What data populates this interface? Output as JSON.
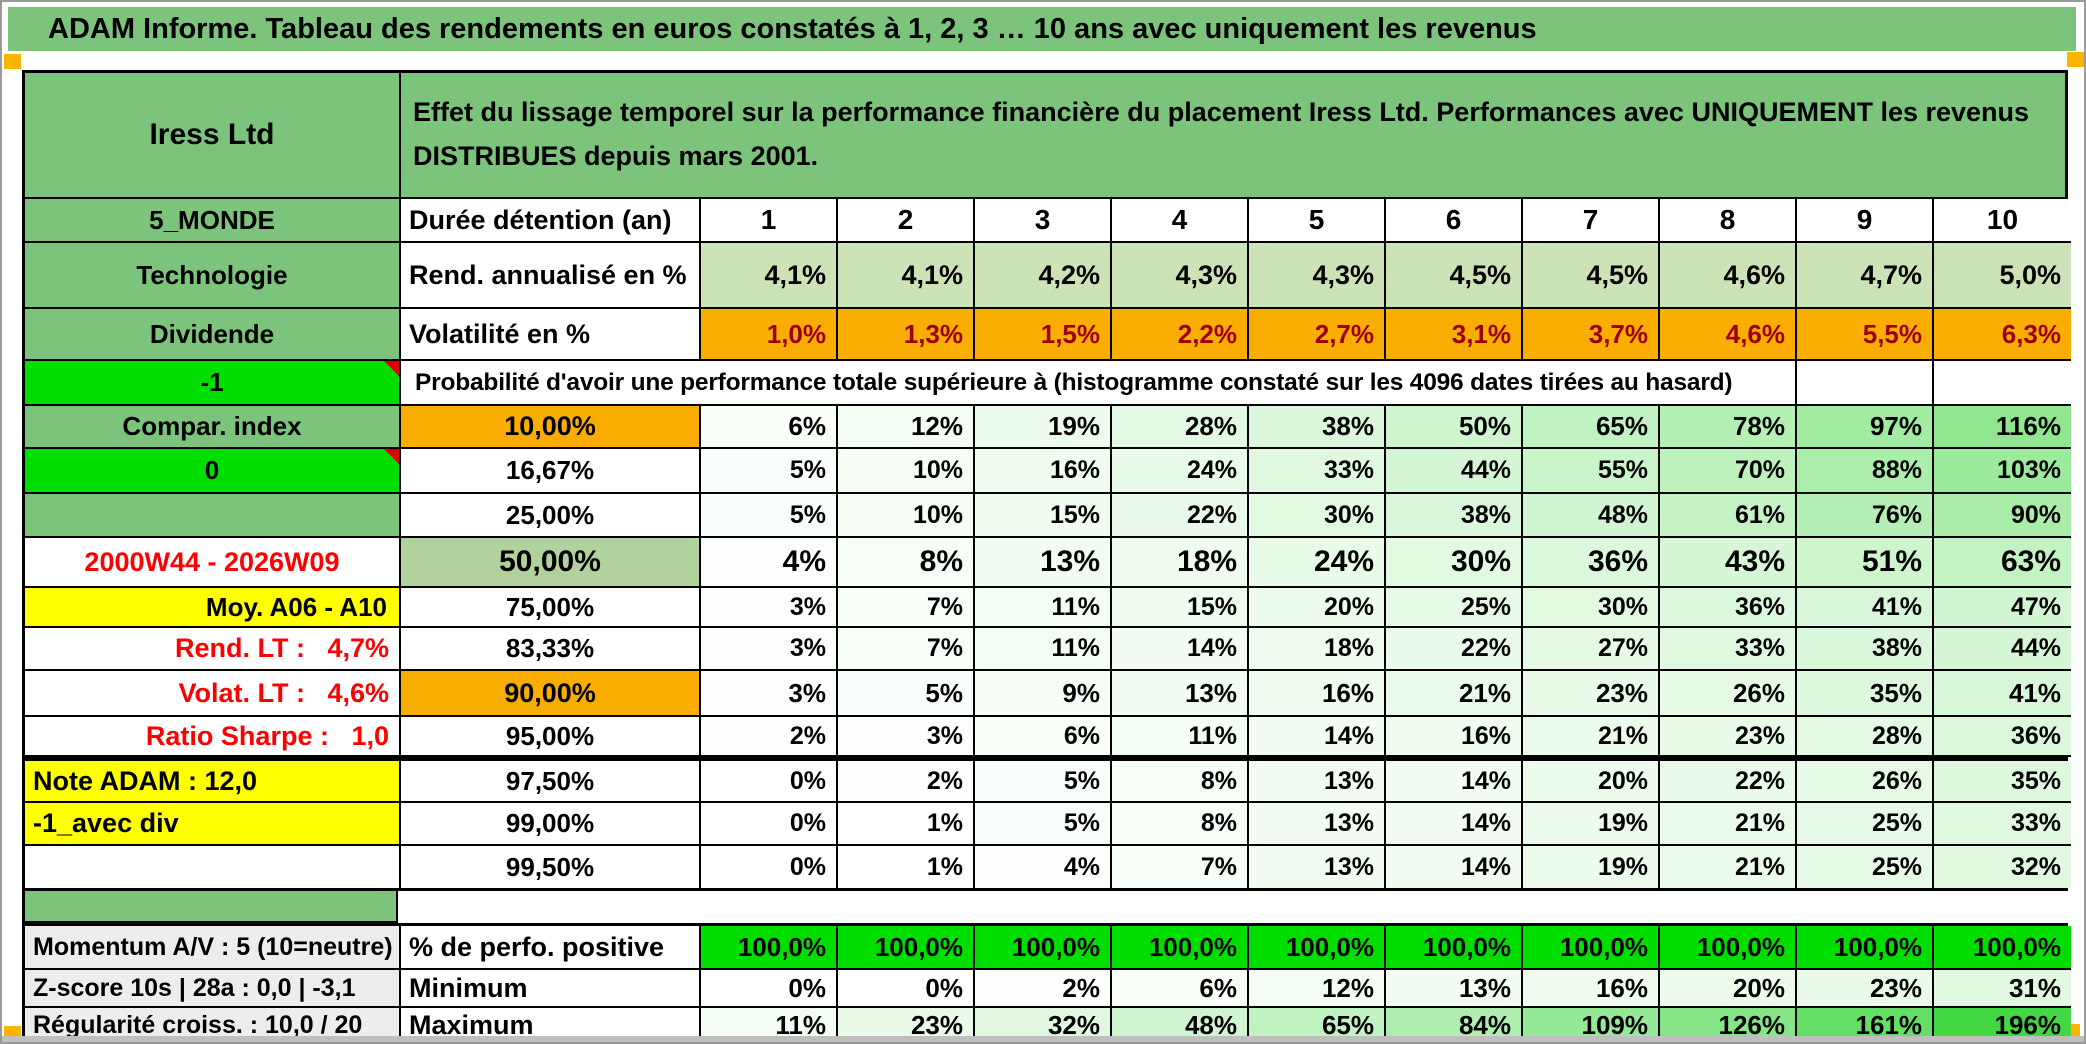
{
  "window": {
    "title": "ADAM Informe. Tableau des rendements en euros constatés à 1, 2, 3 … 10 ans avec uniquement les revenus"
  },
  "colors": {
    "header_green": "#7CC47C",
    "bright_green": "#00DE00",
    "orange": "#F8AD00",
    "yellow": "#FFFF00",
    "red_text": "#FF0000",
    "dark_red_text": "#9C0006",
    "gradient_green_max": "#3FD63F",
    "light_sage": "#CBE3B6",
    "gray_label": "#EDEDED"
  },
  "sheet": {
    "fund_name": "Iress Ltd",
    "description": "Effet du lissage temporel sur la performance financière du placement Iress Ltd. Performances avec UNIQUEMENT les revenus DISTRIBUES depuis mars 2001.",
    "columns": [
      "1",
      "2",
      "3",
      "4",
      "5",
      "6",
      "7",
      "8",
      "9",
      "10"
    ],
    "rows": [
      {
        "id": "duration",
        "a": {
          "text": "5_MONDE",
          "kind": "green"
        },
        "b": {
          "text": "Durée détention (an)",
          "kind": "label"
        },
        "cells": {
          "kind": "head",
          "values": [
            "1",
            "2",
            "3",
            "4",
            "5",
            "6",
            "7",
            "8",
            "9",
            "10"
          ]
        }
      },
      {
        "id": "rend",
        "a": {
          "text": "Technologie",
          "kind": "green"
        },
        "b": {
          "text": "Rend. annualisé en %",
          "kind": "label"
        },
        "cells": {
          "kind": "sage",
          "values": [
            "4,1%",
            "4,1%",
            "4,2%",
            "4,3%",
            "4,3%",
            "4,5%",
            "4,5%",
            "4,6%",
            "4,7%",
            "5,0%"
          ]
        }
      },
      {
        "id": "volat",
        "a": {
          "text": "Dividende",
          "kind": "green"
        },
        "b": {
          "text": "Volatilité en %",
          "kind": "label"
        },
        "cells": {
          "kind": "volat",
          "values": [
            "1,0%",
            "1,3%",
            "1,5%",
            "2,2%",
            "2,7%",
            "3,1%",
            "3,7%",
            "4,6%",
            "5,5%",
            "6,3%"
          ]
        }
      },
      {
        "id": "proba",
        "a": {
          "text": "-1",
          "kind": "bright",
          "comment": true
        },
        "merged_text": "Probabilité d'avoir une performance totale supérieure à (histogramme constaté sur les 4096 dates tirées au hasard)"
      },
      {
        "id": "p10",
        "a": {
          "text": "Compar. index",
          "kind": "green"
        },
        "b": {
          "text": "10,00%",
          "kind": "orange"
        },
        "cells": {
          "kind": "grad bold",
          "values": [
            "6%",
            "12%",
            "19%",
            "28%",
            "38%",
            "50%",
            "65%",
            "78%",
            "97%",
            "116%"
          ]
        }
      },
      {
        "id": "p1667",
        "a": {
          "text": "0",
          "kind": "bright",
          "comment": true
        },
        "b": {
          "text": "16,67%",
          "kind": "pct"
        },
        "cells": {
          "kind": "grad",
          "values": [
            "5%",
            "10%",
            "16%",
            "24%",
            "33%",
            "44%",
            "55%",
            "70%",
            "88%",
            "103%"
          ]
        }
      },
      {
        "id": "p25",
        "a": {
          "text": "",
          "kind": "green"
        },
        "b": {
          "text": "25,00%",
          "kind": "pct"
        },
        "cells": {
          "kind": "grad",
          "values": [
            "5%",
            "10%",
            "15%",
            "22%",
            "30%",
            "38%",
            "48%",
            "61%",
            "76%",
            "90%"
          ]
        }
      },
      {
        "id": "p50",
        "a": {
          "text": "2000W44 - 2026W09",
          "kind": "redc"
        },
        "b": {
          "text": "50,00%",
          "kind": "sagebig"
        },
        "cells": {
          "kind": "grad big",
          "values": [
            "4%",
            "8%",
            "13%",
            "18%",
            "24%",
            "30%",
            "36%",
            "43%",
            "51%",
            "63%"
          ]
        }
      },
      {
        "id": "p75",
        "a": {
          "text": "Moy. A06 - A10",
          "kind": "yellow-right"
        },
        "b": {
          "text": "75,00%",
          "kind": "pct"
        },
        "cells": {
          "kind": "grad",
          "values": [
            "3%",
            "7%",
            "11%",
            "15%",
            "20%",
            "25%",
            "30%",
            "36%",
            "41%",
            "47%"
          ]
        }
      },
      {
        "id": "p8333",
        "a": {
          "text": "Rend. LT :   4,7%",
          "kind": "redr"
        },
        "b": {
          "text": "83,33%",
          "kind": "pct"
        },
        "cells": {
          "kind": "grad",
          "values": [
            "3%",
            "7%",
            "11%",
            "14%",
            "18%",
            "22%",
            "27%",
            "33%",
            "38%",
            "44%"
          ]
        }
      },
      {
        "id": "p90",
        "a": {
          "text": "Volat. LT :   4,6%",
          "kind": "redr"
        },
        "b": {
          "text": "90,00%",
          "kind": "orange"
        },
        "cells": {
          "kind": "grad bold",
          "values": [
            "3%",
            "5%",
            "9%",
            "13%",
            "16%",
            "21%",
            "23%",
            "26%",
            "35%",
            "41%"
          ]
        }
      },
      {
        "id": "p95",
        "a": {
          "text": "Ratio Sharpe :   1,0",
          "kind": "redr"
        },
        "b": {
          "text": "95,00%",
          "kind": "pct"
        },
        "cells": {
          "kind": "grad",
          "values": [
            "2%",
            "3%",
            "6%",
            "11%",
            "14%",
            "16%",
            "21%",
            "23%",
            "28%",
            "36%"
          ]
        }
      },
      {
        "id": "p975",
        "thick_top": true,
        "a": {
          "text": "Note ADAM : 12,0",
          "kind": "yellow-left"
        },
        "b": {
          "text": "97,50%",
          "kind": "pct"
        },
        "cells": {
          "kind": "grad",
          "values": [
            "0%",
            "2%",
            "5%",
            "8%",
            "13%",
            "14%",
            "20%",
            "22%",
            "26%",
            "35%"
          ]
        }
      },
      {
        "id": "p99",
        "a": {
          "text": "-1_avec div",
          "kind": "yellow-left"
        },
        "b": {
          "text": "99,00%",
          "kind": "pct"
        },
        "cells": {
          "kind": "grad",
          "values": [
            "0%",
            "1%",
            "5%",
            "8%",
            "13%",
            "14%",
            "19%",
            "21%",
            "25%",
            "33%"
          ]
        }
      },
      {
        "id": "p995",
        "a": {
          "text": "",
          "kind": ""
        },
        "b": {
          "text": "99,50%",
          "kind": "pct"
        },
        "cells": {
          "kind": "grad",
          "values": [
            "0%",
            "1%",
            "4%",
            "7%",
            "13%",
            "14%",
            "19%",
            "21%",
            "25%",
            "32%"
          ]
        }
      },
      {
        "id": "perfpos",
        "a": {
          "text": "Momentum A/V : 5 (10=neutre)",
          "kind": "gray"
        },
        "b": {
          "text": "% de perfo. positive",
          "kind": "label"
        },
        "cells": {
          "kind": "green100",
          "values": [
            "100,0%",
            "100,0%",
            "100,0%",
            "100,0%",
            "100,0%",
            "100,0%",
            "100,0%",
            "100,0%",
            "100,0%",
            "100,0%"
          ]
        }
      },
      {
        "id": "min",
        "a": {
          "text": "Z-score 10s | 28a : 0,0 | -3,1",
          "kind": "gray"
        },
        "b": {
          "text": "Minimum",
          "kind": "label"
        },
        "cells": {
          "kind": "grad bold",
          "values": [
            "0%",
            "0%",
            "2%",
            "6%",
            "12%",
            "13%",
            "16%",
            "20%",
            "23%",
            "31%"
          ]
        }
      },
      {
        "id": "max",
        "a": {
          "text": "Régularité croiss. : 10,0 / 20",
          "kind": "gray"
        },
        "b": {
          "text": "Maximum",
          "kind": "label"
        },
        "cells": {
          "kind": "grad bold",
          "values": [
            "11%",
            "23%",
            "32%",
            "48%",
            "65%",
            "84%",
            "109%",
            "126%",
            "161%",
            "196%"
          ]
        }
      }
    ]
  }
}
